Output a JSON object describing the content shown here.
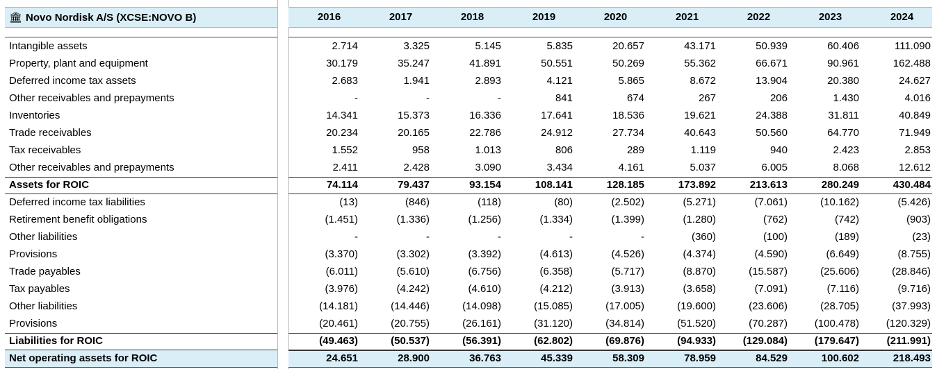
{
  "header": {
    "icon": "bank-icon",
    "title": "Novo Nordisk A/S (XCSE:NOVO B)",
    "years": [
      "2016",
      "2017",
      "2018",
      "2019",
      "2020",
      "2021",
      "2022",
      "2023",
      "2024"
    ]
  },
  "rows": [
    {
      "label": "Intangible assets",
      "bold": false,
      "values": [
        "2.714",
        "3.325",
        "5.145",
        "5.835",
        "20.657",
        "43.171",
        "50.939",
        "60.406",
        "111.090"
      ]
    },
    {
      "label": "Property, plant and equipment",
      "bold": false,
      "values": [
        "30.179",
        "35.247",
        "41.891",
        "50.551",
        "50.269",
        "55.362",
        "66.671",
        "90.961",
        "162.488"
      ]
    },
    {
      "label": "Deferred income tax assets",
      "bold": false,
      "values": [
        "2.683",
        "1.941",
        "2.893",
        "4.121",
        "5.865",
        "8.672",
        "13.904",
        "20.380",
        "24.627"
      ]
    },
    {
      "label": "Other receivables and prepayments",
      "bold": false,
      "values": [
        "-",
        "-",
        "-",
        "841",
        "674",
        "267",
        "206",
        "1.430",
        "4.016"
      ]
    },
    {
      "label": "Inventories",
      "bold": false,
      "values": [
        "14.341",
        "15.373",
        "16.336",
        "17.641",
        "18.536",
        "19.621",
        "24.388",
        "31.811",
        "40.849"
      ]
    },
    {
      "label": "Trade receivables",
      "bold": false,
      "values": [
        "20.234",
        "20.165",
        "22.786",
        "24.912",
        "27.734",
        "40.643",
        "50.560",
        "64.770",
        "71.949"
      ]
    },
    {
      "label": "Tax receivables",
      "bold": false,
      "values": [
        "1.552",
        "958",
        "1.013",
        "806",
        "289",
        "1.119",
        "940",
        "2.423",
        "2.853"
      ]
    },
    {
      "label": "Other receivables and prepayments",
      "bold": false,
      "values": [
        "2.411",
        "2.428",
        "3.090",
        "3.434",
        "4.161",
        "5.037",
        "6.005",
        "8.068",
        "12.612"
      ]
    },
    {
      "label": "Assets for ROIC",
      "bold": true,
      "values": [
        "74.114",
        "79.437",
        "93.154",
        "108.141",
        "128.185",
        "173.892",
        "213.613",
        "280.249",
        "430.484"
      ]
    },
    {
      "label": "Deferred income tax liabilities",
      "bold": false,
      "values": [
        "(13)",
        "(846)",
        "(118)",
        "(80)",
        "(2.502)",
        "(5.271)",
        "(7.061)",
        "(10.162)",
        "(5.426)"
      ]
    },
    {
      "label": "Retirement benefit obligations",
      "bold": false,
      "values": [
        "(1.451)",
        "(1.336)",
        "(1.256)",
        "(1.334)",
        "(1.399)",
        "(1.280)",
        "(762)",
        "(742)",
        "(903)"
      ]
    },
    {
      "label": "Other liabilities",
      "bold": false,
      "values": [
        "-",
        "-",
        "-",
        "-",
        "-",
        "(360)",
        "(100)",
        "(189)",
        "(23)"
      ]
    },
    {
      "label": "Provisions",
      "bold": false,
      "values": [
        "(3.370)",
        "(3.302)",
        "(3.392)",
        "(4.613)",
        "(4.526)",
        "(4.374)",
        "(4.590)",
        "(6.649)",
        "(8.755)"
      ]
    },
    {
      "label": "Trade payables",
      "bold": false,
      "values": [
        "(6.011)",
        "(5.610)",
        "(6.756)",
        "(6.358)",
        "(5.717)",
        "(8.870)",
        "(15.587)",
        "(25.606)",
        "(28.846)"
      ]
    },
    {
      "label": "Tax payables",
      "bold": false,
      "values": [
        "(3.976)",
        "(4.242)",
        "(4.610)",
        "(4.212)",
        "(3.913)",
        "(3.658)",
        "(7.091)",
        "(7.116)",
        "(9.716)"
      ]
    },
    {
      "label": "Other liabilities",
      "bold": false,
      "values": [
        "(14.181)",
        "(14.446)",
        "(14.098)",
        "(15.085)",
        "(17.005)",
        "(19.600)",
        "(23.606)",
        "(28.705)",
        "(37.993)"
      ]
    },
    {
      "label": "Provisions",
      "bold": false,
      "values": [
        "(20.461)",
        "(20.755)",
        "(26.161)",
        "(31.120)",
        "(34.814)",
        "(51.520)",
        "(70.287)",
        "(100.478)",
        "(120.329)"
      ]
    },
    {
      "label": "Liabilities for ROIC",
      "bold": true,
      "values": [
        "(49.463)",
        "(50.537)",
        "(56.391)",
        "(62.802)",
        "(69.876)",
        "(94.933)",
        "(129.084)",
        "(179.647)",
        "(211.991)"
      ]
    },
    {
      "label": "Net operating assets for ROIC",
      "bold": true,
      "final": true,
      "values": [
        "24.651",
        "28.900",
        "36.763",
        "45.339",
        "58.309",
        "78.959",
        "84.529",
        "100.602",
        "218.493"
      ]
    }
  ]
}
